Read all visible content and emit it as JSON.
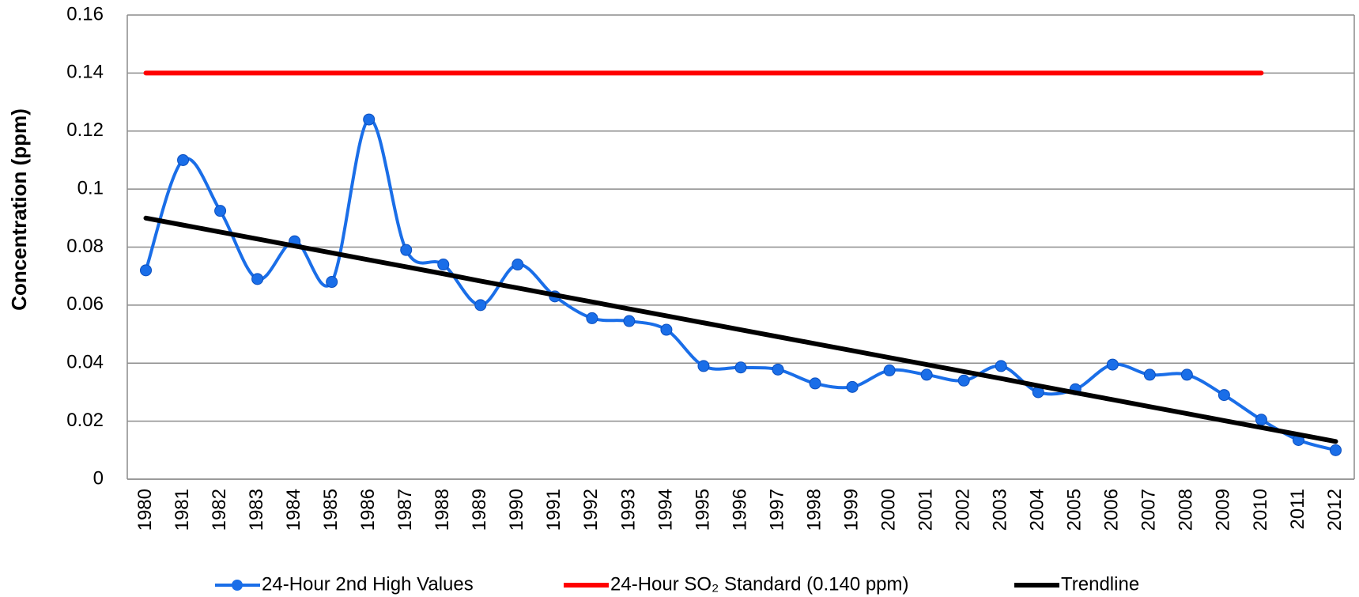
{
  "chart_data": {
    "type": "line",
    "y_label": "Concentration (ppm)",
    "categories": [
      "1980",
      "1981",
      "1982",
      "1983",
      "1984",
      "1985",
      "1986",
      "1987",
      "1988",
      "1989",
      "1990",
      "1991",
      "1992",
      "1993",
      "1994",
      "1995",
      "1996",
      "1997",
      "1998",
      "1999",
      "2000",
      "2001",
      "2002",
      "2003",
      "2004",
      "2005",
      "2006",
      "2007",
      "2008",
      "2009",
      "2010",
      "2011",
      "2012"
    ],
    "series": [
      {
        "name": "24-Hour 2nd High Values",
        "color": "#1a6ee8",
        "smooth": true,
        "markers": true,
        "values": [
          0.072,
          0.11,
          0.0925,
          0.069,
          0.082,
          0.068,
          0.124,
          0.079,
          0.074,
          0.06,
          0.074,
          0.063,
          0.0555,
          0.0545,
          0.0515,
          0.039,
          0.0385,
          0.0378,
          0.033,
          0.0318,
          0.0375,
          0.036,
          0.034,
          0.039,
          0.03,
          0.031,
          0.0395,
          0.036,
          0.036,
          0.029,
          0.0205,
          0.0135,
          0.01
        ]
      },
      {
        "name": "24-Hour SO₂ Standard (0.140 ppm)",
        "color": "#ff0000",
        "smooth": false,
        "markers": false,
        "values": [
          0.14,
          0.14,
          0.14,
          0.14,
          0.14,
          0.14,
          0.14,
          0.14,
          0.14,
          0.14,
          0.14,
          0.14,
          0.14,
          0.14,
          0.14,
          0.14,
          0.14,
          0.14,
          0.14,
          0.14,
          0.14,
          0.14,
          0.14,
          0.14,
          0.14,
          0.14,
          0.14,
          0.14,
          0.14,
          0.14,
          0.14,
          null,
          null
        ]
      },
      {
        "name": "Trendline",
        "color": "#000000",
        "smooth": false,
        "markers": false,
        "values": [
          0.09,
          0.0876,
          0.0852,
          0.0828,
          0.0804,
          0.078,
          0.0756,
          0.0732,
          0.0708,
          0.0683,
          0.0659,
          0.0635,
          0.0611,
          0.0587,
          0.0563,
          0.0539,
          0.0515,
          0.0491,
          0.0467,
          0.0443,
          0.0419,
          0.0395,
          0.0371,
          0.0347,
          0.0322,
          0.0298,
          0.0274,
          0.025,
          0.0226,
          0.0202,
          0.0178,
          0.0154,
          0.013
        ]
      }
    ],
    "ylim": [
      0,
      0.16
    ],
    "yticks": [
      0,
      0.02,
      0.04,
      0.06,
      0.08,
      0.1,
      0.12,
      0.14,
      0.16
    ],
    "grid": true,
    "legend": "bottom"
  }
}
